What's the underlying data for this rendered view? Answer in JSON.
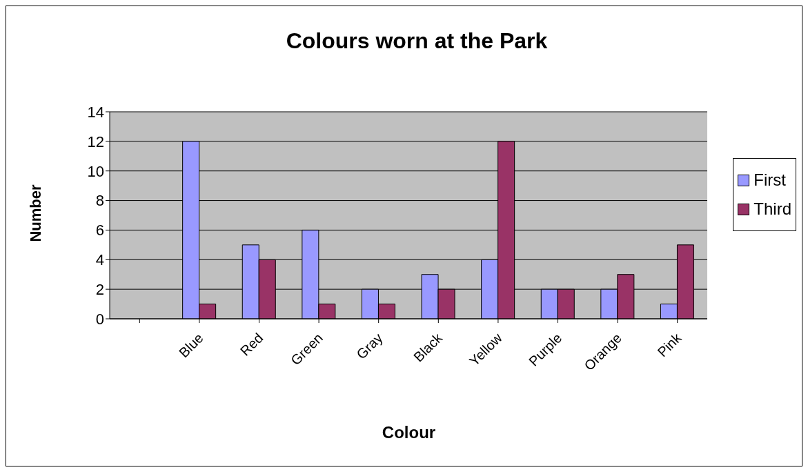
{
  "chart_data": {
    "type": "bar",
    "title": "Colours worn at the Park",
    "xlabel": "Colour",
    "ylabel": "Number",
    "categories": [
      null,
      "Blue",
      "Red",
      "Green",
      "Gray",
      "Black",
      "Yellow",
      "Purple",
      "Orange",
      "Pink"
    ],
    "series": [
      {
        "name": "First",
        "color": "#9999ff",
        "values": [
          null,
          12,
          5,
          6,
          2,
          3,
          4,
          2,
          2,
          1
        ]
      },
      {
        "name": "Third",
        "color": "#993366",
        "values": [
          null,
          1,
          4,
          1,
          1,
          2,
          12,
          2,
          3,
          5
        ]
      }
    ],
    "ylim": [
      0,
      14
    ],
    "yticks": [
      0,
      2,
      4,
      6,
      8,
      10,
      12,
      14
    ],
    "grid": "y",
    "legend": "right"
  }
}
